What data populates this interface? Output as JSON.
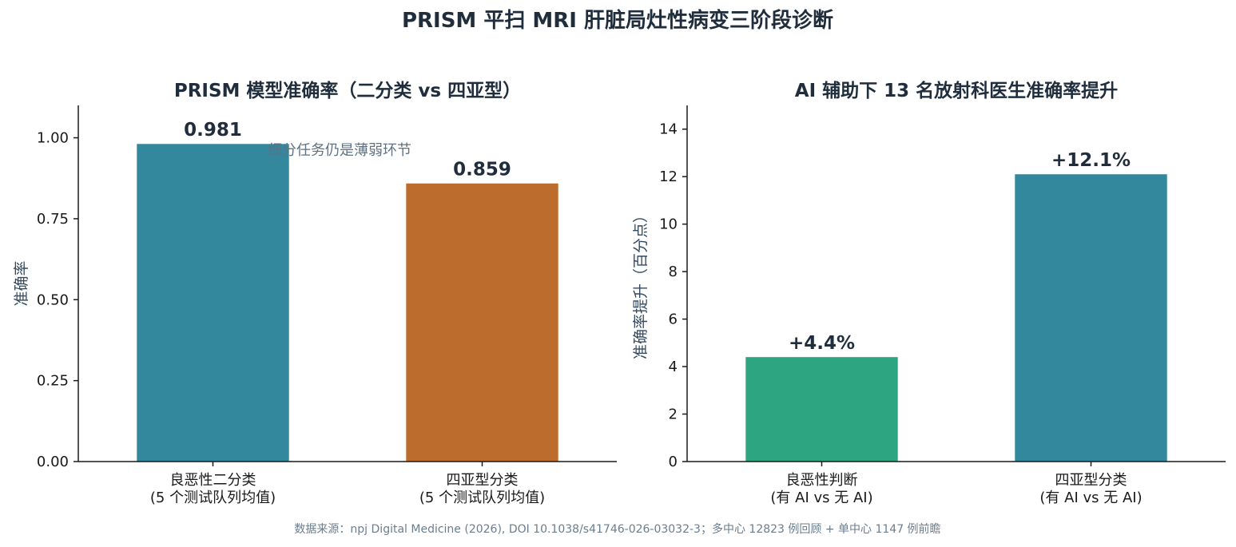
{
  "figure": {
    "title": "PRISM 平扫 MRI 肝脏局灶性病变三阶段诊断",
    "source": "数据来源：npj Digital Medicine (2026), DOI 10.1038/s41746-026-03032-3；多中心 12823 例回顾 + 单中心 1147 例前瞻"
  },
  "chart_data": [
    {
      "type": "bar",
      "title": "PRISM 模型准确率（二分类 vs 四亚型）",
      "xlabel": "",
      "ylabel": "准确率",
      "ylim": [
        0,
        1.1
      ],
      "yticks": [
        0,
        0.25,
        0.5,
        0.75,
        1.0
      ],
      "ytick_labels": [
        "0.00",
        "0.25",
        "0.50",
        "0.75",
        "1.00"
      ],
      "categories": [
        [
          "良恶性二分类",
          "(5 个测试队列均值)"
        ],
        [
          "四亚型分类",
          "(5 个测试队列均值)"
        ]
      ],
      "values": [
        0.981,
        0.859
      ],
      "value_labels": [
        "0.981",
        "0.859"
      ],
      "colors": [
        "#33889e",
        "#bc6c2d"
      ],
      "annotation": "细分任务仍是薄弱环节",
      "grid": false
    },
    {
      "type": "bar",
      "title": "AI 辅助下 13 名放射科医生准确率提升",
      "xlabel": "",
      "ylabel": "准确率提升（百分点）",
      "ylim": [
        0,
        15
      ],
      "yticks": [
        0,
        2,
        4,
        6,
        8,
        10,
        12,
        14
      ],
      "ytick_labels": [
        "0",
        "2",
        "4",
        "6",
        "8",
        "10",
        "12",
        "14"
      ],
      "categories": [
        [
          "良恶性判断",
          "(有 AI vs 无 AI)"
        ],
        [
          "四亚型分类",
          "(有 AI vs 无 AI)"
        ]
      ],
      "values": [
        4.4,
        12.1
      ],
      "value_labels": [
        "+4.4%",
        "+12.1%"
      ],
      "colors": [
        "#2ca580",
        "#33889e"
      ],
      "grid": false
    }
  ]
}
